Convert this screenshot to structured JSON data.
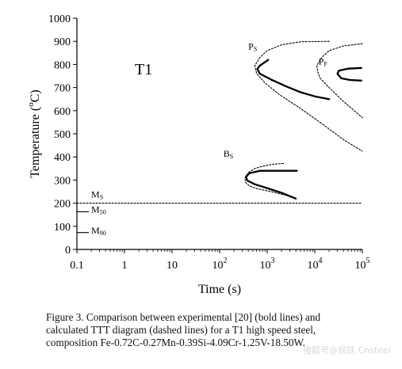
{
  "chart_data": {
    "type": "line",
    "panel_label": "T1",
    "xlabel": "Time (s)",
    "ylabel": "Temperature (°C)",
    "x_scale": "log",
    "xlim": [
      0.1,
      100000
    ],
    "ylim": [
      0,
      1000
    ],
    "x_ticks": [
      {
        "value": 0.1,
        "label": "0.1",
        "exp": ""
      },
      {
        "value": 1,
        "label": "1",
        "exp": ""
      },
      {
        "value": 10,
        "label": "10",
        "exp": ""
      },
      {
        "value": 100,
        "label": "10",
        "exp": "2"
      },
      {
        "value": 1000,
        "label": "10",
        "exp": "3"
      },
      {
        "value": 10000,
        "label": "10",
        "exp": "4"
      },
      {
        "value": 100000,
        "label": "10",
        "exp": "5"
      }
    ],
    "y_ticks": [
      0,
      100,
      200,
      300,
      400,
      500,
      600,
      700,
      800,
      900,
      1000
    ],
    "grid": false,
    "labels": [
      {
        "id": "ps",
        "main": "P",
        "sub": "S",
        "x": 400,
        "y": 865
      },
      {
        "id": "pf",
        "main": "P",
        "sub": "F",
        "x": 12000,
        "y": 800
      },
      {
        "id": "bs",
        "main": "B",
        "sub": "S",
        "x": 120,
        "y": 400
      },
      {
        "id": "ms",
        "main": "M",
        "sub": "S",
        "x": 0.2,
        "y": 225
      },
      {
        "id": "m50",
        "main": "M",
        "sub": "50",
        "x": 0.2,
        "y": 160
      },
      {
        "id": "m90",
        "main": "M",
        "sub": "90",
        "x": 0.2,
        "y": 68
      }
    ],
    "series": [
      {
        "id": "ps_exp",
        "style": "bold",
        "points": [
          [
            1050,
            820
          ],
          [
            700,
            795
          ],
          [
            620,
            780
          ],
          [
            700,
            760
          ],
          [
            1200,
            735
          ],
          [
            2500,
            705
          ],
          [
            5000,
            680
          ],
          [
            10000,
            662
          ],
          [
            20000,
            650
          ]
        ]
      },
      {
        "id": "pf_exp",
        "style": "bold",
        "points": [
          [
            95000,
            785
          ],
          [
            50000,
            782
          ],
          [
            32000,
            773
          ],
          [
            30000,
            760
          ],
          [
            36000,
            740
          ],
          [
            55000,
            733
          ],
          [
            95000,
            730
          ]
        ]
      },
      {
        "id": "bs_exp",
        "style": "bold",
        "points": [
          [
            4200,
            340
          ],
          [
            1200,
            340
          ],
          [
            700,
            340
          ],
          [
            430,
            330
          ],
          [
            360,
            315
          ],
          [
            380,
            298
          ],
          [
            550,
            282
          ],
          [
            1000,
            265
          ],
          [
            2000,
            245
          ],
          [
            4000,
            220
          ]
        ]
      },
      {
        "id": "ps_calc",
        "style": "dashed",
        "points": [
          [
            20000,
            900
          ],
          [
            5000,
            898
          ],
          [
            2000,
            885
          ],
          [
            1000,
            860
          ],
          [
            700,
            830
          ],
          [
            550,
            795
          ],
          [
            600,
            760
          ],
          [
            900,
            720
          ],
          [
            1800,
            670
          ],
          [
            5000,
            610
          ],
          [
            15000,
            540
          ],
          [
            40000,
            475
          ],
          [
            100000,
            425
          ]
        ]
      },
      {
        "id": "pf_calc",
        "style": "dashed",
        "points": [
          [
            100000,
            890
          ],
          [
            40000,
            880
          ],
          [
            20000,
            860
          ],
          [
            14000,
            830
          ],
          [
            11000,
            795
          ],
          [
            11500,
            770
          ],
          [
            13000,
            740
          ],
          [
            20000,
            700
          ],
          [
            40000,
            640
          ],
          [
            100000,
            570
          ]
        ]
      },
      {
        "id": "bs_calc",
        "style": "dashed",
        "points": [
          [
            2200,
            372
          ],
          [
            1300,
            368
          ],
          [
            800,
            360
          ],
          [
            550,
            350
          ],
          [
            400,
            332
          ],
          [
            340,
            310
          ],
          [
            350,
            290
          ],
          [
            420,
            275
          ],
          [
            600,
            263
          ],
          [
            1200,
            250
          ],
          [
            3000,
            230
          ]
        ]
      },
      {
        "id": "ms_line",
        "style": "dashed",
        "points": [
          [
            0.1,
            200
          ],
          [
            100000,
            200
          ]
        ]
      },
      {
        "id": "m50_line",
        "style": "solid",
        "points": [
          [
            0.1,
            163
          ],
          [
            0.175,
            163
          ]
        ]
      },
      {
        "id": "m90_line",
        "style": "solid",
        "points": [
          [
            0.1,
            73
          ],
          [
            0.175,
            73
          ]
        ]
      }
    ]
  },
  "caption": {
    "line1": "Figure 3. Comparison between experimental [20] (bold lines) and",
    "line2": "calculated TTT diagram (dashed lines) for a T1 high speed steel,",
    "line3": "composition Fe-0.72C-0.27Mn-0.39Si-4.09Cr-1.25V-18.50W."
  },
  "watermark": "搜狐号@钢铁 Cnsteel"
}
